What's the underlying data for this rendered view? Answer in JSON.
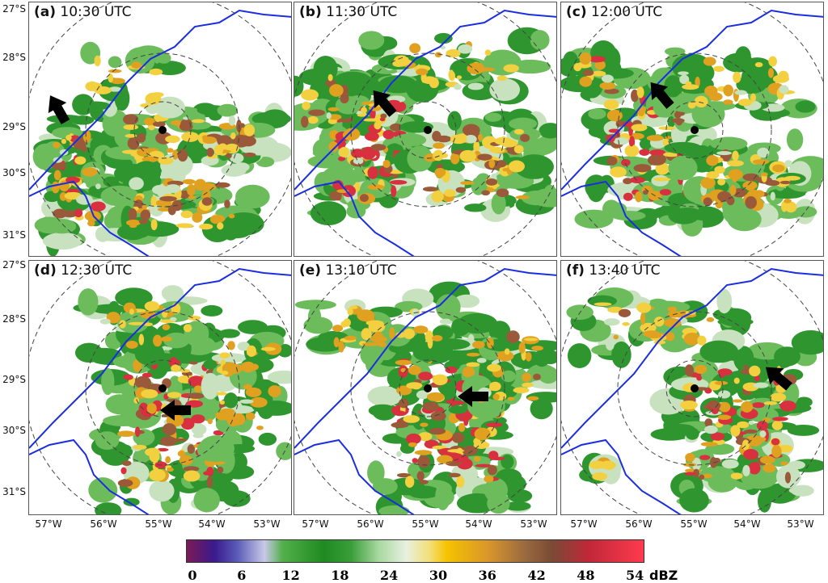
{
  "panels": [
    {
      "tag": "(a)",
      "time": "10:30 UTC"
    },
    {
      "tag": "(b)",
      "time": "11:30 UTC"
    },
    {
      "tag": "(c)",
      "time": "12:00 UTC"
    },
    {
      "tag": "(d)",
      "time": "12:30 UTC"
    },
    {
      "tag": "(e)",
      "time": "13:10 UTC"
    },
    {
      "tag": "(f)",
      "time": "13:40 UTC"
    }
  ],
  "latitude_labels": [
    "27°S",
    "28°S",
    "29°S",
    "30°S",
    "31°S"
  ],
  "longitude_labels": [
    "57°W",
    "56°W",
    "55°W",
    "54°W",
    "53°W"
  ],
  "colorbar": {
    "ticks": [
      "0",
      "6",
      "12",
      "18",
      "24",
      "30",
      "36",
      "42",
      "48",
      "54"
    ],
    "unit": "dBZ"
  },
  "colors": {
    "border_line": "#1a2ee0",
    "weak": "#3fa83a",
    "moderate": "#f0c020",
    "strong": "#d8303e"
  }
}
